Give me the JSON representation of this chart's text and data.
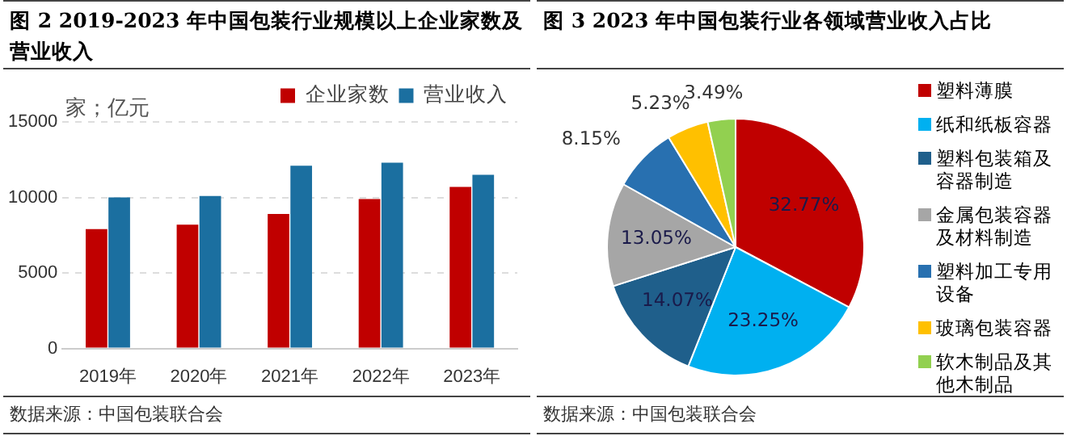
{
  "chart_data": [
    {
      "type": "bar",
      "title": "图 2 2019-2023 年中国包装行业规模以上企业家数及营业收入",
      "ylabel": "家；亿元",
      "categories": [
        "2019年",
        "2020年",
        "2021年",
        "2022年",
        "2023年"
      ],
      "series": [
        {
          "name": "企业家数",
          "color": "#c00000",
          "values": [
            7900,
            8200,
            8900,
            9900,
            10700
          ]
        },
        {
          "name": "营业收入",
          "color": "#1b6fa0",
          "values": [
            10000,
            10100,
            12100,
            12300,
            11500
          ]
        }
      ],
      "ylim": [
        0,
        15000
      ],
      "yticks": [
        0,
        5000,
        10000,
        15000
      ],
      "grid": "y",
      "legend": "top right",
      "annotations": [
        "数据来源：中国包装联合会"
      ]
    },
    {
      "type": "pie",
      "title": "图 3 2023 年中国包装行业各领域营业收入占比",
      "categories": [
        "塑料薄膜",
        "纸和纸板容器",
        "塑料包装箱及容器制造",
        "金属包装容器及材料制造",
        "塑料加工专用设备",
        "玻璃包装容器",
        "软木制品及其他木制品"
      ],
      "values": [
        32.77,
        23.25,
        14.07,
        13.05,
        8.15,
        5.23,
        3.49
      ],
      "colors": [
        "#c00000",
        "#00b0f0",
        "#1f5f8b",
        "#a6a6a6",
        "#2870b0",
        "#ffc000",
        "#92d050"
      ],
      "value_labels": [
        "32.77%",
        "23.25%",
        "14.07%",
        "13.05%",
        "8.15%",
        "5.23%",
        "3.49%"
      ],
      "legend": "right",
      "annotations": [
        "数据来源：中国包装联合会"
      ]
    }
  ]
}
